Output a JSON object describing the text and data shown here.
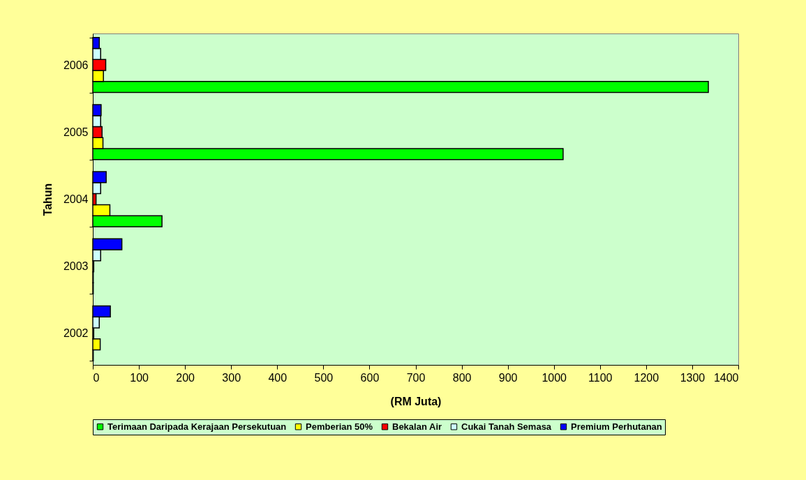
{
  "chart_data": {
    "type": "bar",
    "orientation": "horizontal",
    "xlabel": "(RM Juta)",
    "ylabel": "Tahun",
    "categories": [
      "2006",
      "2005",
      "2004",
      "2003",
      "2002"
    ],
    "series": [
      {
        "name": "Terimaan Daripada Kerajaan Persekutuan",
        "color": "#00ff00",
        "values": [
          1335,
          1020,
          150,
          1,
          1
        ]
      },
      {
        "name": "Pemberian 50%",
        "color": "#ffff00",
        "values": [
          23,
          22,
          37,
          1,
          16
        ]
      },
      {
        "name": "Bekalan Air",
        "color": "#ff0000",
        "values": [
          28,
          20,
          7,
          2,
          2
        ]
      },
      {
        "name": "Cukai Tanah Semasa",
        "color": "#ccffff",
        "values": [
          17,
          17,
          17,
          17,
          14
        ]
      },
      {
        "name": "Premium Perhutanan",
        "color": "#0000ff",
        "values": [
          14,
          18,
          29,
          63,
          38
        ]
      }
    ],
    "xlim": [
      0,
      1400
    ],
    "xticks": [
      0,
      100,
      200,
      300,
      400,
      500,
      600,
      700,
      800,
      900,
      1000,
      1100,
      1200,
      1300,
      1400
    ],
    "grid": false,
    "legend": "bottom"
  }
}
